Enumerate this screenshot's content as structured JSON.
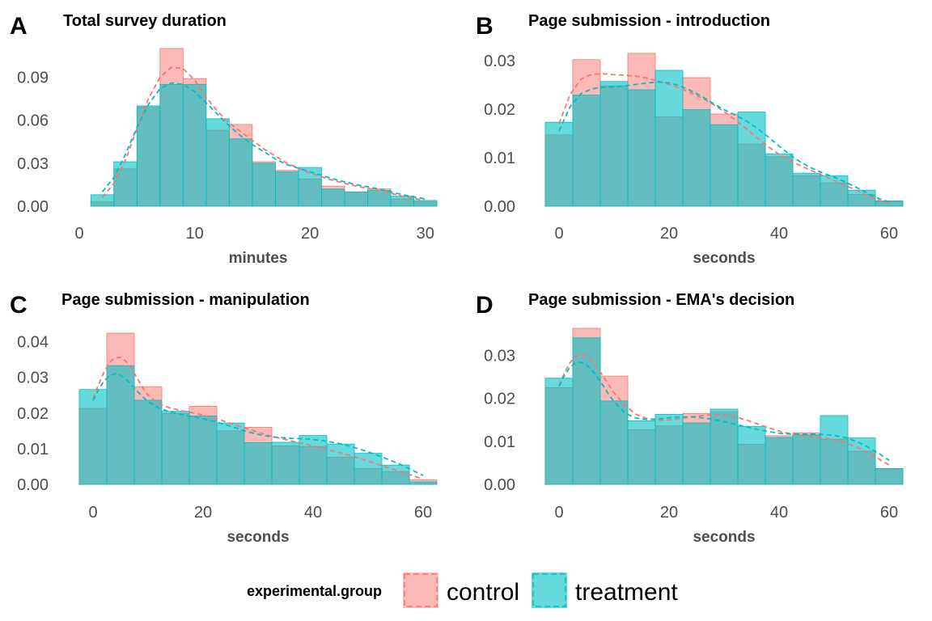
{
  "chart_data": [
    {
      "letter": "A",
      "type": "bar",
      "title": "Total survey duration",
      "xlabel": "minutes",
      "ylabel": "",
      "xlim": [
        0,
        31
      ],
      "ylim": [
        0,
        0.11
      ],
      "xticks": [
        0,
        10,
        20,
        30
      ],
      "xtick_labels": [
        "0",
        "10",
        "20",
        "30"
      ],
      "yticks": [
        0,
        0.03,
        0.06,
        0.09
      ],
      "ytick_labels": [
        "0.00",
        "0.03",
        "0.06",
        "0.09"
      ],
      "bin_edges": [
        1,
        3,
        5,
        7,
        9,
        11,
        13,
        15,
        17,
        19,
        21,
        23,
        25,
        27,
        29,
        31
      ],
      "series": [
        {
          "name": "control",
          "values": [
            0.003,
            0.026,
            0.069,
            0.11,
            0.089,
            0.053,
            0.057,
            0.031,
            0.025,
            0.019,
            0.014,
            0.01,
            0.012,
            0.005,
            0.003
          ]
        },
        {
          "name": "treatment",
          "values": [
            0.008,
            0.031,
            0.07,
            0.085,
            0.085,
            0.061,
            0.047,
            0.03,
            0.024,
            0.027,
            0.012,
            0.01,
            0.011,
            0.007,
            0.004
          ]
        }
      ],
      "density": [
        {
          "name": "control",
          "x": [
            2,
            3,
            4,
            5,
            6,
            7,
            8,
            9,
            10,
            11,
            12,
            13,
            14,
            15,
            16,
            17,
            18,
            20,
            22,
            24,
            26,
            28,
            30
          ],
          "y": [
            0.006,
            0.016,
            0.032,
            0.054,
            0.075,
            0.09,
            0.097,
            0.096,
            0.088,
            0.076,
            0.066,
            0.058,
            0.052,
            0.046,
            0.04,
            0.035,
            0.03,
            0.023,
            0.018,
            0.014,
            0.011,
            0.007,
            0.004
          ]
        },
        {
          "name": "treatment",
          "x": [
            2,
            3,
            4,
            5,
            6,
            7,
            8,
            9,
            10,
            11,
            12,
            13,
            14,
            15,
            16,
            17,
            18,
            20,
            22,
            24,
            26,
            28,
            30
          ],
          "y": [
            0.01,
            0.02,
            0.036,
            0.055,
            0.071,
            0.082,
            0.086,
            0.085,
            0.08,
            0.072,
            0.064,
            0.056,
            0.049,
            0.043,
            0.038,
            0.033,
            0.029,
            0.024,
            0.019,
            0.015,
            0.012,
            0.008,
            0.005
          ]
        }
      ]
    },
    {
      "letter": "B",
      "type": "bar",
      "title": "Page submission - introduction",
      "xlabel": "seconds",
      "ylabel": "",
      "xlim": [
        -2.5,
        62.5
      ],
      "ylim": [
        0,
        0.0325
      ],
      "xticks": [
        0,
        20,
        40,
        60
      ],
      "xtick_labels": [
        "0",
        "20",
        "40",
        "60"
      ],
      "yticks": [
        0,
        0.01,
        0.02,
        0.03
      ],
      "ytick_labels": [
        "0.00",
        "0.01",
        "0.02",
        "0.03"
      ],
      "bin_edges": [
        -2.5,
        2.5,
        7.5,
        12.5,
        17.5,
        22.5,
        27.5,
        32.5,
        37.5,
        42.5,
        47.5,
        52.5,
        57.5,
        62.5
      ],
      "series": [
        {
          "name": "control",
          "values": [
            0.0147,
            0.0302,
            0.0248,
            0.0315,
            0.0184,
            0.0265,
            0.019,
            0.0128,
            0.0102,
            0.0063,
            0.0048,
            0.0024,
            0.0009
          ]
        },
        {
          "name": "treatment",
          "values": [
            0.0173,
            0.0229,
            0.0257,
            0.024,
            0.028,
            0.0199,
            0.0168,
            0.0194,
            0.0108,
            0.0068,
            0.0063,
            0.0033,
            0.0011
          ]
        }
      ],
      "density": [
        {
          "name": "control",
          "x": [
            0,
            2,
            4,
            6,
            8,
            10,
            12,
            14,
            16,
            18,
            20,
            22,
            24,
            26,
            28,
            30,
            32,
            34,
            36,
            38,
            40,
            42,
            44,
            46,
            48,
            50,
            52,
            54,
            56,
            58,
            60
          ],
          "y": [
            0.017,
            0.023,
            0.0262,
            0.0272,
            0.0273,
            0.0271,
            0.027,
            0.0268,
            0.0264,
            0.0258,
            0.0251,
            0.0243,
            0.0234,
            0.0223,
            0.021,
            0.0195,
            0.0178,
            0.016,
            0.0141,
            0.0123,
            0.0107,
            0.0094,
            0.0083,
            0.0073,
            0.0063,
            0.0053,
            0.0043,
            0.0033,
            0.0022,
            0.0012,
            0.0006
          ]
        },
        {
          "name": "treatment",
          "x": [
            0,
            2,
            4,
            6,
            8,
            10,
            12,
            14,
            16,
            18,
            20,
            22,
            24,
            26,
            28,
            30,
            32,
            34,
            36,
            38,
            40,
            42,
            44,
            46,
            48,
            50,
            52,
            54,
            56,
            58,
            60
          ],
          "y": [
            0.0155,
            0.0205,
            0.0232,
            0.0242,
            0.0245,
            0.0246,
            0.0248,
            0.0251,
            0.0254,
            0.0256,
            0.0254,
            0.0248,
            0.0238,
            0.0226,
            0.0212,
            0.0199,
            0.0188,
            0.0176,
            0.0161,
            0.0143,
            0.0124,
            0.0106,
            0.009,
            0.0078,
            0.0068,
            0.006,
            0.005,
            0.0039,
            0.0027,
            0.0016,
            0.0009
          ]
        }
      ]
    },
    {
      "letter": "C",
      "type": "bar",
      "title": "Page submission - manipulation",
      "xlabel": "seconds",
      "ylabel": "",
      "xlim": [
        -2.5,
        62.5
      ],
      "ylim": [
        0,
        0.044
      ],
      "xticks": [
        0,
        20,
        40,
        60
      ],
      "xtick_labels": [
        "0",
        "20",
        "40",
        "60"
      ],
      "yticks": [
        0,
        0.01,
        0.02,
        0.03,
        0.04
      ],
      "ytick_labels": [
        "0.00",
        "0.01",
        "0.02",
        "0.03",
        "0.04"
      ],
      "bin_edges": [
        -2.5,
        2.5,
        7.5,
        12.5,
        17.5,
        22.5,
        27.5,
        32.5,
        37.5,
        42.5,
        47.5,
        52.5,
        57.5,
        62.5
      ],
      "series": [
        {
          "name": "control",
          "values": [
            0.0213,
            0.0424,
            0.0274,
            0.0199,
            0.0219,
            0.015,
            0.016,
            0.0108,
            0.0106,
            0.0076,
            0.0044,
            0.0036,
            0.0013
          ]
        },
        {
          "name": "treatment",
          "values": [
            0.0266,
            0.0333,
            0.0236,
            0.0205,
            0.0192,
            0.0172,
            0.0117,
            0.0118,
            0.0137,
            0.0113,
            0.0087,
            0.0054,
            0.0007
          ]
        }
      ],
      "density": [
        {
          "name": "control",
          "x": [
            0,
            1,
            2,
            3,
            4,
            5,
            6,
            7,
            8,
            9,
            10,
            12,
            14,
            16,
            18,
            20,
            22,
            24,
            26,
            28,
            30,
            32,
            34,
            36,
            38,
            40,
            42,
            44,
            46,
            48,
            50,
            52,
            54,
            56,
            58,
            60
          ],
          "y": [
            0.024,
            0.028,
            0.0315,
            0.0342,
            0.0355,
            0.0356,
            0.0345,
            0.0325,
            0.0299,
            0.0272,
            0.025,
            0.0226,
            0.0214,
            0.0207,
            0.0201,
            0.0194,
            0.0186,
            0.0176,
            0.0166,
            0.0156,
            0.0146,
            0.0137,
            0.0129,
            0.0122,
            0.0115,
            0.0108,
            0.01,
            0.0092,
            0.0084,
            0.0075,
            0.0065,
            0.0055,
            0.0045,
            0.0035,
            0.0025,
            0.0015
          ]
        },
        {
          "name": "treatment",
          "x": [
            0,
            1,
            2,
            3,
            4,
            5,
            6,
            7,
            8,
            9,
            10,
            12,
            14,
            16,
            18,
            20,
            22,
            24,
            26,
            28,
            30,
            32,
            34,
            36,
            38,
            40,
            42,
            44,
            46,
            48,
            50,
            52,
            54,
            56,
            58,
            60
          ],
          "y": [
            0.0235,
            0.0265,
            0.029,
            0.0305,
            0.031,
            0.0306,
            0.0295,
            0.0279,
            0.0262,
            0.0246,
            0.0232,
            0.0214,
            0.0203,
            0.0196,
            0.019,
            0.0184,
            0.0177,
            0.0168,
            0.0158,
            0.0148,
            0.014,
            0.0134,
            0.0131,
            0.0129,
            0.0128,
            0.0126,
            0.0122,
            0.0117,
            0.011,
            0.0101,
            0.0091,
            0.008,
            0.0068,
            0.0055,
            0.004,
            0.0025
          ]
        }
      ]
    },
    {
      "letter": "D",
      "type": "bar",
      "title": "Page submission - EMA's decision",
      "xlabel": "seconds",
      "ylabel": "",
      "xlim": [
        -2.5,
        62.5
      ],
      "ylim": [
        0,
        0.0365
      ],
      "xticks": [
        0,
        20,
        40,
        60
      ],
      "xtick_labels": [
        "0",
        "20",
        "40",
        "60"
      ],
      "yticks": [
        0,
        0.01,
        0.02,
        0.03
      ],
      "ytick_labels": [
        "0.00",
        "0.01",
        "0.02",
        "0.03"
      ],
      "bin_edges": [
        -2.5,
        2.5,
        7.5,
        12.5,
        17.5,
        22.5,
        27.5,
        32.5,
        37.5,
        42.5,
        47.5,
        52.5,
        57.5,
        62.5
      ],
      "series": [
        {
          "name": "control",
          "values": [
            0.0225,
            0.0363,
            0.0252,
            0.0127,
            0.0136,
            0.0165,
            0.0168,
            0.0093,
            0.0113,
            0.012,
            0.0105,
            0.0077,
            0.0036
          ]
        },
        {
          "name": "treatment",
          "values": [
            0.0247,
            0.0341,
            0.0194,
            0.0148,
            0.0163,
            0.0143,
            0.0175,
            0.0135,
            0.0109,
            0.0115,
            0.016,
            0.0108,
            0.0037
          ]
        }
      ],
      "density": [
        {
          "name": "control",
          "x": [
            0,
            1,
            2,
            3,
            4,
            5,
            6,
            7,
            8,
            9,
            10,
            12,
            14,
            16,
            18,
            20,
            22,
            24,
            26,
            28,
            30,
            32,
            34,
            36,
            38,
            40,
            42,
            44,
            46,
            48,
            50,
            52,
            54,
            56,
            58,
            60
          ],
          "y": [
            0.023,
            0.026,
            0.0283,
            0.0297,
            0.0302,
            0.0298,
            0.0287,
            0.0271,
            0.0252,
            0.0232,
            0.0213,
            0.0183,
            0.0163,
            0.0153,
            0.0149,
            0.015,
            0.0153,
            0.0157,
            0.016,
            0.0162,
            0.0161,
            0.0157,
            0.015,
            0.0141,
            0.0132,
            0.0124,
            0.0118,
            0.0114,
            0.0111,
            0.0108,
            0.0104,
            0.0097,
            0.0087,
            0.0074,
            0.006,
            0.0045
          ]
        },
        {
          "name": "treatment",
          "x": [
            0,
            1,
            2,
            3,
            4,
            5,
            6,
            7,
            8,
            9,
            10,
            12,
            14,
            16,
            18,
            20,
            22,
            24,
            26,
            28,
            30,
            32,
            34,
            36,
            38,
            40,
            42,
            44,
            46,
            48,
            50,
            52,
            54,
            56,
            58,
            60
          ],
          "y": [
            0.0228,
            0.0254,
            0.0273,
            0.0283,
            0.0284,
            0.0278,
            0.0266,
            0.0249,
            0.023,
            0.021,
            0.0192,
            0.0166,
            0.0154,
            0.0151,
            0.0152,
            0.0155,
            0.0157,
            0.0157,
            0.0155,
            0.0151,
            0.0146,
            0.014,
            0.0134,
            0.0128,
            0.0123,
            0.0119,
            0.0117,
            0.0117,
            0.0117,
            0.0116,
            0.0114,
            0.0109,
            0.01,
            0.0088,
            0.0073,
            0.0056
          ]
        }
      ]
    }
  ],
  "legend": {
    "title": "experimental.group",
    "items": [
      {
        "label": "control",
        "fill": "#F8766D",
        "line": "#F8766D"
      },
      {
        "label": "treatment",
        "fill": "#00BFC4",
        "line": "#00BFC4"
      }
    ]
  },
  "colors": {
    "control": "#F8766D",
    "treatment": "#00BFC4",
    "tick_text": "#4d4d4d"
  }
}
